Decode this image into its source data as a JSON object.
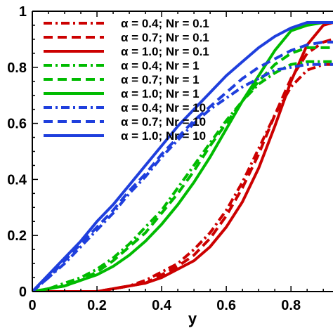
{
  "chart_data": {
    "type": "line",
    "title": "",
    "xlabel": "y",
    "ylabel": "",
    "xlim": [
      0,
      0.93
    ],
    "ylim": [
      0,
      1
    ],
    "x_ticks": [
      "0",
      "0.2",
      "0.4",
      "0.6",
      "0.8"
    ],
    "y_ticks": [
      "0",
      "0.2",
      "0.4",
      "0.6",
      "0.8",
      "1"
    ],
    "x_tick_values": [
      0,
      0.2,
      0.4,
      0.6,
      0.8
    ],
    "y_tick_values": [
      0,
      0.2,
      0.4,
      0.6,
      0.8,
      1.0
    ],
    "grid": false,
    "legend_position": "top-left",
    "x": [
      0,
      0.05,
      0.1,
      0.15,
      0.2,
      0.25,
      0.3,
      0.35,
      0.4,
      0.45,
      0.5,
      0.55,
      0.6,
      0.65,
      0.7,
      0.75,
      0.8,
      0.85,
      0.9,
      0.93
    ],
    "series": [
      {
        "name": "α = 0.4; Nr = 0.1",
        "color": "#cc0000",
        "dash": "dashdot",
        "values": [
          0,
          0.0,
          0.0,
          0.0,
          0.0,
          0.01,
          0.02,
          0.04,
          0.07,
          0.1,
          0.15,
          0.21,
          0.29,
          0.39,
          0.51,
          0.63,
          0.73,
          0.79,
          0.81,
          0.81
        ]
      },
      {
        "name": "α = 0.7; Nr = 0.1",
        "color": "#cc0000",
        "dash": "dash",
        "values": [
          0,
          0.0,
          0.0,
          0.0,
          0.0,
          0.01,
          0.02,
          0.03,
          0.06,
          0.09,
          0.13,
          0.19,
          0.27,
          0.37,
          0.49,
          0.63,
          0.76,
          0.85,
          0.89,
          0.9
        ]
      },
      {
        "name": "α = 1.0; Nr = 0.1",
        "color": "#cc0000",
        "dash": "solid",
        "values": [
          0,
          0.0,
          0.0,
          0.0,
          0.0,
          0.01,
          0.02,
          0.03,
          0.05,
          0.08,
          0.11,
          0.16,
          0.23,
          0.32,
          0.44,
          0.59,
          0.75,
          0.88,
          0.95,
          0.96
        ]
      },
      {
        "name": "α = 0.4; Nr = 1",
        "color": "#00bb00",
        "dash": "dashdot",
        "values": [
          0,
          0.01,
          0.03,
          0.05,
          0.08,
          0.12,
          0.17,
          0.23,
          0.29,
          0.37,
          0.45,
          0.53,
          0.61,
          0.68,
          0.74,
          0.78,
          0.81,
          0.82,
          0.82,
          0.82
        ]
      },
      {
        "name": "α = 0.7; Nr = 1",
        "color": "#00bb00",
        "dash": "dash",
        "values": [
          0,
          0.01,
          0.02,
          0.04,
          0.07,
          0.11,
          0.16,
          0.21,
          0.28,
          0.35,
          0.43,
          0.52,
          0.6,
          0.68,
          0.75,
          0.81,
          0.85,
          0.87,
          0.87,
          0.87
        ]
      },
      {
        "name": "α = 1.0; Nr = 1",
        "color": "#00bb00",
        "dash": "solid",
        "values": [
          0,
          0.01,
          0.02,
          0.04,
          0.06,
          0.09,
          0.13,
          0.18,
          0.24,
          0.31,
          0.39,
          0.48,
          0.58,
          0.68,
          0.77,
          0.86,
          0.93,
          0.95,
          0.96,
          0.96
        ]
      },
      {
        "name": "α = 0.4; Nr = 10",
        "color": "#1f3fdd",
        "dash": "dashdot",
        "values": [
          0,
          0.05,
          0.1,
          0.16,
          0.22,
          0.28,
          0.35,
          0.41,
          0.48,
          0.54,
          0.6,
          0.65,
          0.69,
          0.73,
          0.76,
          0.79,
          0.8,
          0.81,
          0.81,
          0.81
        ]
      },
      {
        "name": "α = 0.7; Nr = 10",
        "color": "#1f3fdd",
        "dash": "dash",
        "values": [
          0,
          0.05,
          0.11,
          0.17,
          0.23,
          0.29,
          0.36,
          0.42,
          0.49,
          0.55,
          0.61,
          0.66,
          0.71,
          0.76,
          0.8,
          0.83,
          0.86,
          0.88,
          0.89,
          0.89
        ]
      },
      {
        "name": "α = 1.0; Nr = 10",
        "color": "#1f3fdd",
        "dash": "solid",
        "values": [
          0,
          0.06,
          0.12,
          0.18,
          0.25,
          0.31,
          0.38,
          0.45,
          0.52,
          0.59,
          0.65,
          0.71,
          0.77,
          0.82,
          0.87,
          0.91,
          0.94,
          0.96,
          0.96,
          0.96
        ]
      }
    ]
  }
}
